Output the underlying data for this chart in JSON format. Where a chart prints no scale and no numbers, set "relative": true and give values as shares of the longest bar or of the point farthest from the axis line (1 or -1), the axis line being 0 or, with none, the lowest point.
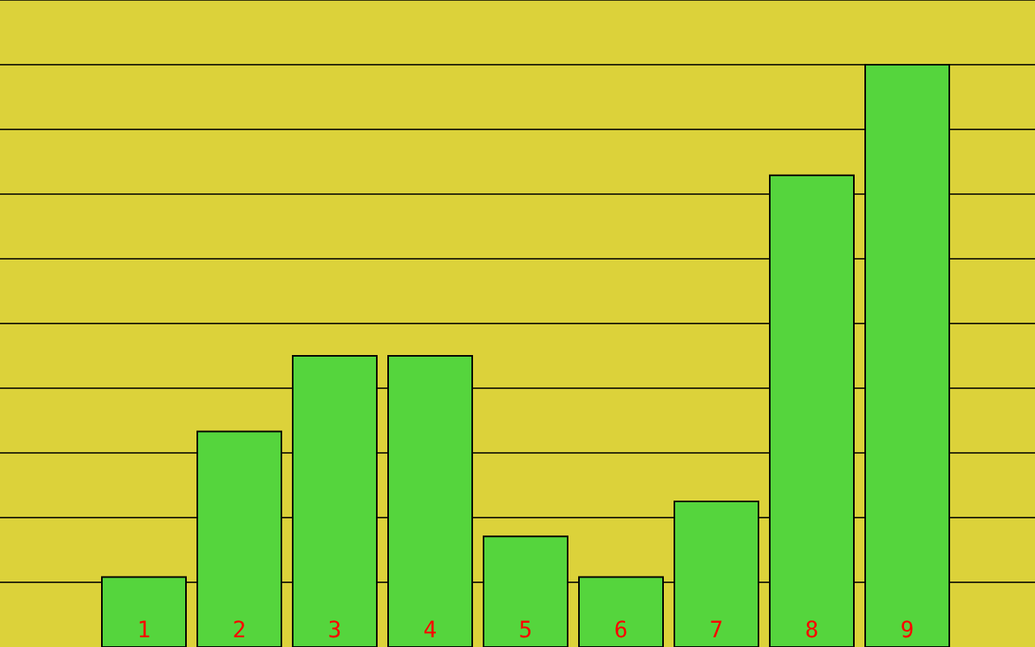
{
  "chart_data": {
    "type": "bar",
    "relative": true,
    "categories": [
      "1",
      "2",
      "3",
      "4",
      "5",
      "6",
      "7",
      "8",
      "9"
    ],
    "values": [
      0.12,
      0.37,
      0.5,
      0.5,
      0.19,
      0.12,
      0.25,
      0.81,
      1
    ],
    "color": "#55d53d",
    "grid": "y"
  }
}
